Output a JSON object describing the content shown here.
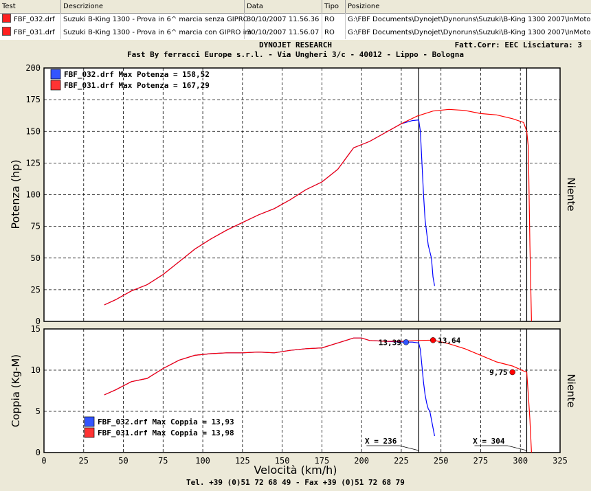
{
  "table": {
    "columns": [
      "Test",
      "Descrizione",
      "Data",
      "Tipo",
      "Posizione"
    ],
    "rows": [
      {
        "color": "#ff0000",
        "test": "FBF_032.drf",
        "desc": "Suzuki B-King 1300 - Prova in 6^ marcia senza GIPRO",
        "date": "30/10/2007 11.56.36",
        "type": "RO",
        "path": "G:\\FBF Documents\\Dynojet\\Dynoruns\\Suzuki\\B-King 1300 2007\\InMoto"
      },
      {
        "color": "#ff0000",
        "test": "FBF_031.drf",
        "desc": "Suzuki B-King 1300 - Prova in 6^ marcia con GIPRO im",
        "date": "30/10/2007 11.56.07",
        "type": "RO",
        "path": "G:\\FBF Documents\\Dynojet\\Dynoruns\\Suzuki\\B-King 1300 2007\\InMoto"
      }
    ]
  },
  "header": {
    "title": "DYNOJET RESEARCH",
    "company": "Fast By ferracci Europe s.r.l. - Via Ungheri 3/c - 40012 - Lippo - Bologna",
    "corr": "Fatt.Corr: EEC  Lisciatura: 3"
  },
  "footer": "Tel. +39 (0)51 72 68 49 - Fax +39 (0)51 72 68 79",
  "chart_data": [
    {
      "type": "line",
      "ylabel": "Potenza (hp)",
      "right_label": "Niente",
      "ylim": [
        0,
        200
      ],
      "yticks": [
        0,
        25,
        50,
        75,
        100,
        125,
        150,
        175,
        200
      ],
      "xlim": [
        0,
        325
      ],
      "legend": [
        "FBF_032.drf Max Potenza = 158,52",
        "FBF_031.drf Max Potenza = 167,29"
      ],
      "series": [
        {
          "name": "FBF_032.drf",
          "color": "#0000ff",
          "x": [
            38,
            45,
            55,
            65,
            75,
            85,
            95,
            105,
            115,
            125,
            135,
            145,
            155,
            165,
            175,
            185,
            195,
            205,
            215,
            225,
            232,
            236,
            237,
            238,
            239,
            240,
            241,
            242,
            243,
            244,
            245,
            246
          ],
          "y": [
            13,
            17,
            24,
            29,
            37,
            47,
            57,
            65,
            72,
            78,
            84,
            89,
            96,
            104,
            110,
            120,
            137,
            142,
            149,
            156,
            158.5,
            159,
            150,
            125,
            100,
            80,
            70,
            60,
            55,
            50,
            35,
            28
          ]
        },
        {
          "name": "FBF_031.drf",
          "color": "#ff0000",
          "x": [
            38,
            45,
            55,
            65,
            75,
            85,
            95,
            105,
            115,
            125,
            135,
            145,
            155,
            165,
            175,
            185,
            195,
            205,
            215,
            225,
            235,
            245,
            255,
            265,
            275,
            285,
            295,
            302,
            304,
            305,
            306,
            307
          ],
          "y": [
            13,
            17,
            24,
            29,
            37,
            47,
            57,
            65,
            72,
            78,
            84,
            89,
            96,
            104,
            110,
            120,
            137,
            142,
            149,
            156,
            162,
            166,
            167.3,
            166.5,
            164,
            163,
            160,
            157,
            150,
            138,
            60,
            0
          ]
        }
      ],
      "vlines": [
        236,
        304
      ]
    },
    {
      "type": "line",
      "ylabel": "Coppia (Kg-M)",
      "xlabel": "Velocità (km/h)",
      "right_label": "Niente",
      "ylim": [
        0,
        15
      ],
      "yticks": [
        0,
        5,
        10,
        15
      ],
      "xlim": [
        0,
        325
      ],
      "xticks": [
        0,
        25,
        50,
        75,
        100,
        125,
        150,
        175,
        200,
        225,
        250,
        275,
        300,
        325
      ],
      "legend": [
        "FBF_032.drf Max Coppia = 13,93",
        "FBF_031.drf Max Coppia = 13,98"
      ],
      "series": [
        {
          "name": "FBF_032.drf",
          "color": "#0000ff",
          "x": [
            38,
            45,
            55,
            65,
            75,
            85,
            95,
            105,
            115,
            125,
            135,
            145,
            155,
            165,
            175,
            185,
            195,
            200,
            205,
            215,
            225,
            232,
            236,
            237,
            238,
            239,
            240,
            241,
            242,
            243,
            244,
            245,
            246
          ],
          "y": [
            7,
            7.6,
            8.6,
            9,
            10.2,
            11.2,
            11.8,
            12.0,
            12.1,
            12.1,
            12.2,
            12.1,
            12.4,
            12.6,
            12.7,
            13.3,
            13.9,
            13.9,
            13.6,
            13.5,
            13.4,
            13.4,
            13.3,
            12.5,
            10.5,
            8.5,
            7,
            6,
            5.3,
            5,
            4,
            3,
            2
          ]
        },
        {
          "name": "FBF_031.drf",
          "color": "#ff0000",
          "x": [
            38,
            45,
            55,
            65,
            75,
            85,
            95,
            105,
            115,
            125,
            135,
            145,
            155,
            165,
            175,
            185,
            195,
            200,
            205,
            215,
            225,
            235,
            245,
            255,
            265,
            275,
            285,
            295,
            302,
            304,
            305,
            306,
            307
          ],
          "y": [
            7,
            7.6,
            8.6,
            9,
            10.2,
            11.2,
            11.8,
            12.0,
            12.1,
            12.1,
            12.2,
            12.1,
            12.4,
            12.6,
            12.7,
            13.3,
            13.9,
            13.9,
            13.6,
            13.5,
            13.5,
            13.6,
            13.64,
            13.2,
            12.6,
            11.8,
            11.0,
            10.5,
            9.9,
            9.75,
            7,
            4,
            0
          ]
        }
      ],
      "markers": [
        {
          "x": 228,
          "y": 13.39,
          "label": "13,39",
          "color": "#3355ff",
          "side": "left"
        },
        {
          "x": 245,
          "y": 13.64,
          "label": "13,64",
          "color": "#ff0000",
          "side": "right"
        },
        {
          "x": 295,
          "y": 9.75,
          "label": "9,75",
          "color": "#ff0000",
          "side": "left"
        }
      ],
      "vlines": [
        236,
        304
      ],
      "vline_labels": [
        "X = 236",
        "X = 304"
      ]
    }
  ]
}
